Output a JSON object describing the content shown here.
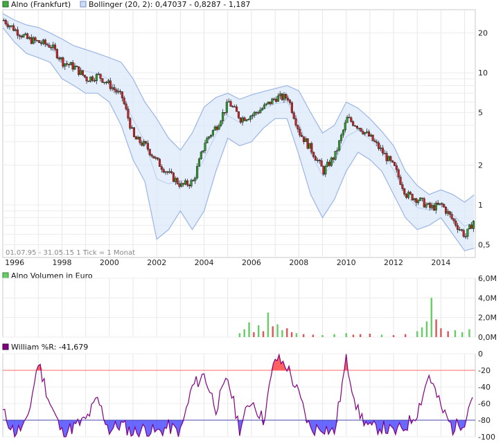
{
  "chart_data": [
    {
      "type": "candlestick",
      "legend": {
        "price_label": "Alno (Frankfurt)",
        "bollinger_label": "Bollinger (20, 2): 0,47037 - 0,8287 - 1,187"
      },
      "y_scale": "log",
      "ylim": [
        0.4,
        30
      ],
      "y_ticks": [
        {
          "value": 20,
          "label": "20"
        },
        {
          "value": 10,
          "label": "10"
        },
        {
          "value": 5,
          "label": "5"
        },
        {
          "value": 2,
          "label": "2"
        },
        {
          "value": 1,
          "label": "1"
        },
        {
          "value": 0.5,
          "label": "0,5"
        }
      ],
      "x_ticks": [
        "1996",
        "1998",
        "2000",
        "2002",
        "2004",
        "2006",
        "2008",
        "2010",
        "2012",
        "2014"
      ],
      "footer_note": "01.07.95 - 31.05.15   1 Tick = 1 Monat",
      "colors": {
        "up": "#2e9d2e",
        "down": "#cc2222",
        "band_fill": "#dce8fa",
        "band_line": "#9ab5e6",
        "mid_line": "#b8cdf0"
      },
      "price_series": {
        "x": [
          1995.5,
          1996.0,
          1996.5,
          1997.0,
          1997.5,
          1998.0,
          1998.5,
          1999.0,
          1999.5,
          2000.0,
          2000.5,
          2001.0,
          2001.5,
          2002.0,
          2002.5,
          2003.0,
          2003.5,
          2004.0,
          2004.5,
          2005.0,
          2005.5,
          2006.0,
          2006.5,
          2007.0,
          2007.5,
          2008.0,
          2008.5,
          2009.0,
          2009.5,
          2010.0,
          2010.5,
          2011.0,
          2011.5,
          2012.0,
          2012.5,
          2013.0,
          2013.5,
          2014.0,
          2014.5,
          2015.0,
          2015.4
        ],
        "y": [
          25,
          21,
          18,
          17,
          16,
          12,
          11,
          9,
          9.5,
          8,
          6.5,
          3.2,
          2.8,
          2.1,
          1.7,
          1.4,
          1.5,
          3,
          4,
          6,
          4.5,
          4.8,
          5.5,
          6.5,
          6.5,
          3.5,
          2.6,
          1.8,
          2.4,
          4.5,
          3.9,
          3.2,
          2.5,
          1.9,
          1.2,
          1.1,
          0.95,
          1.0,
          0.75,
          0.58,
          0.8
        ]
      },
      "bollinger_upper": [
        28,
        25,
        23,
        22,
        20,
        18,
        16,
        15,
        14,
        13,
        12,
        9,
        6,
        4.5,
        3.2,
        2.6,
        3.5,
        5.5,
        6.5,
        7,
        6.3,
        6.8,
        7.2,
        7.6,
        8,
        7.3,
        5,
        3.5,
        4,
        6,
        5.4,
        4.5,
        3.6,
        2.8,
        1.8,
        1.4,
        1.2,
        1.3,
        1.2,
        1.05,
        1.19
      ],
      "bollinger_lower": [
        22,
        17,
        14,
        13,
        12,
        9,
        8,
        7,
        7,
        6,
        4,
        2.2,
        1.5,
        0.55,
        0.65,
        0.9,
        0.65,
        0.9,
        1.8,
        3.2,
        2.8,
        3,
        3.8,
        4.5,
        4.5,
        2.4,
        1.2,
        0.8,
        1.1,
        1.8,
        2.5,
        2.2,
        1.8,
        1.2,
        0.8,
        0.65,
        0.7,
        0.8,
        0.6,
        0.45,
        0.47
      ]
    },
    {
      "type": "bar",
      "legend_label": "Alno Volumen in Euro",
      "ylim": [
        0,
        6000000
      ],
      "y_ticks": [
        {
          "value": 6000000,
          "label": "6,0M"
        },
        {
          "value": 4000000,
          "label": "4,0M"
        },
        {
          "value": 2000000,
          "label": "2,0M"
        },
        {
          "value": 0,
          "label": "0,0M"
        }
      ],
      "colors": {
        "up": "#66cc66",
        "down": "#dd5555"
      },
      "x": [
        2005.5,
        2005.7,
        2005.9,
        2006.1,
        2006.3,
        2006.5,
        2006.7,
        2006.9,
        2007.1,
        2007.3,
        2007.5,
        2007.7,
        2007.9,
        2008.2,
        2008.6,
        2009.0,
        2009.5,
        2010.0,
        2010.3,
        2010.6,
        2011.0,
        2011.5,
        2012.0,
        2012.5,
        2013.0,
        2013.2,
        2013.4,
        2013.6,
        2013.8,
        2014.0,
        2014.3,
        2014.6,
        2014.9,
        2015.2
      ],
      "values": [
        400000,
        800000,
        1500000,
        500000,
        1200000,
        600000,
        2500000,
        1100000,
        1300000,
        700000,
        900000,
        500000,
        400000,
        300000,
        250000,
        200000,
        300000,
        400000,
        250000,
        300000,
        350000,
        250000,
        200000,
        300000,
        600000,
        1000000,
        1600000,
        4000000,
        1800000,
        900000,
        600000,
        700000,
        500000,
        800000
      ],
      "direction": [
        "up",
        "up",
        "up",
        "down",
        "up",
        "down",
        "up",
        "down",
        "up",
        "up",
        "down",
        "down",
        "up",
        "down",
        "down",
        "up",
        "up",
        "up",
        "down",
        "down",
        "down",
        "up",
        "down",
        "down",
        "up",
        "up",
        "up",
        "up",
        "down",
        "down",
        "down",
        "up",
        "up",
        "up"
      ]
    },
    {
      "type": "line",
      "legend_label": "William %R: -41,679",
      "ylim": [
        -100,
        0
      ],
      "y_ticks": [
        {
          "value": 0,
          "label": "0"
        },
        {
          "value": -20,
          "label": "-20"
        },
        {
          "value": -40,
          "label": "-40"
        },
        {
          "value": -60,
          "label": "-60"
        },
        {
          "value": -80,
          "label": "-80"
        },
        {
          "value": -100,
          "label": "-100"
        }
      ],
      "thresholds": {
        "upper": -20,
        "lower": -80
      },
      "colors": {
        "line": "#800080",
        "overbought": "#ff4444",
        "oversold": "#4444ff",
        "upper_line": "#ff6666",
        "lower_line": "#4444aa"
      },
      "x": [
        1995.5,
        1996.0,
        1996.5,
        1997.0,
        1997.5,
        1998.0,
        1998.5,
        1999.0,
        1999.5,
        2000.0,
        2000.5,
        2001.0,
        2001.5,
        2002.0,
        2002.5,
        2003.0,
        2003.5,
        2004.0,
        2004.5,
        2005.0,
        2005.5,
        2006.0,
        2006.5,
        2007.0,
        2007.5,
        2008.0,
        2008.5,
        2009.0,
        2009.5,
        2010.0,
        2010.5,
        2011.0,
        2011.5,
        2012.0,
        2012.5,
        2013.0,
        2013.5,
        2014.0,
        2014.5,
        2015.0,
        2015.4
      ],
      "values": [
        -70,
        -95,
        -85,
        -10,
        -60,
        -95,
        -88,
        -80,
        -55,
        -92,
        -85,
        -95,
        -90,
        -95,
        -88,
        -95,
        -40,
        -25,
        -65,
        -30,
        -90,
        -55,
        -80,
        -5,
        -15,
        -50,
        -92,
        -88,
        -95,
        -8,
        -70,
        -90,
        -88,
        -95,
        -88,
        -70,
        -25,
        -65,
        -90,
        -80,
        -42
      ]
    }
  ]
}
